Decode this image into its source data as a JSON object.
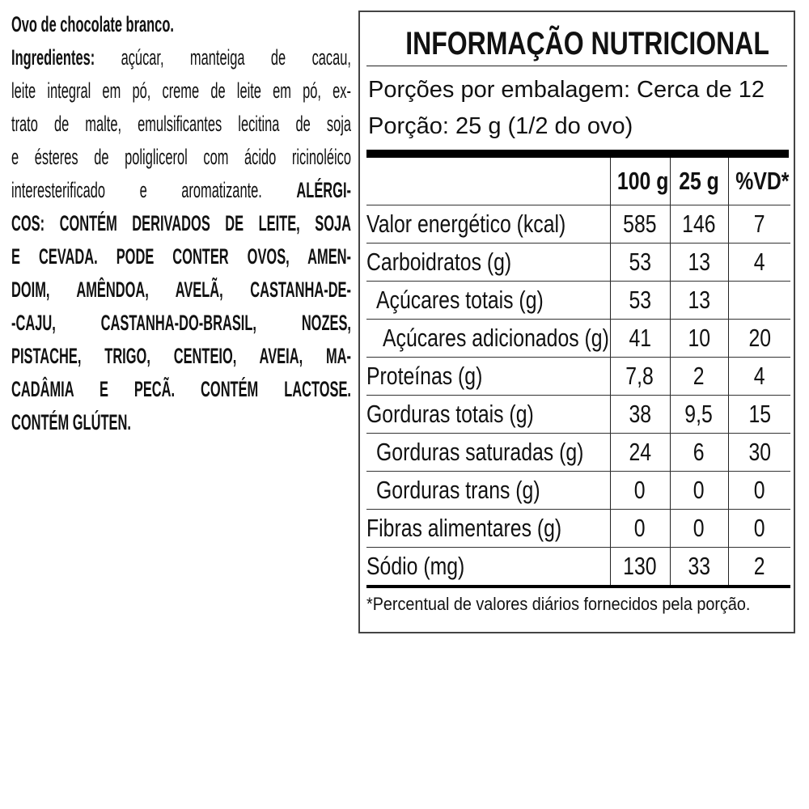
{
  "ingredients_block": {
    "product_name": "Ovo de chocolate branco.",
    "ingredients_label": "Ingredientes:",
    "lines": [
      " açúcar, manteiga de cacau,",
      "leite integral em pó, creme de leite em pó, ex-",
      "trato de malte, emulsificantes lecitina de soja",
      "e ésteres de poliglicerol com ácido ricinoléico",
      "interesterificado e aromatizante. ",
      "ALÉRGI-",
      "COS: CONTÉM DERIVADOS DE LEITE, SOJA",
      "E CEVADA. PODE CONTER OVOS, AMEN-",
      "DOIM, AMÊNDOA, AVELÃ, CASTANHA-DE-",
      "-CAJU, CASTANHA-DO-BRASIL, NOZES,",
      "PISTACHE, TRIGO, CENTEIO, AVEIA, MA-",
      "CADÂMIA E PECÃ. CONTÉM LACTOSE.",
      "CONTÉM GLÚTEN."
    ]
  },
  "nutrition": {
    "title": "INFORMAÇÃO NUTRICIONAL",
    "servings_per_package": "Porções por embalagem: Cerca de 12",
    "serving_size": "Porção: 25 g (1/2 do ovo)",
    "columns": [
      "100 g",
      "25 g",
      "%VD*"
    ],
    "rows": [
      {
        "label": "Valor energético (kcal)",
        "v100": "585",
        "v25": "146",
        "vd": "7"
      },
      {
        "label": "Carboidratos (g)",
        "v100": "53",
        "v25": "13",
        "vd": "4"
      },
      {
        "label": "Açúcares totais (g)",
        "v100": "53",
        "v25": "13",
        "vd": ""
      },
      {
        "label": "Açúcares adicionados (g)",
        "v100": "41",
        "v25": "10",
        "vd": "20"
      },
      {
        "label": "Proteínas (g)",
        "v100": "7,8",
        "v25": "2",
        "vd": "4"
      },
      {
        "label": "Gorduras totais (g)",
        "v100": "38",
        "v25": "9,5",
        "vd": "15"
      },
      {
        "label": "Gorduras saturadas (g)",
        "v100": "24",
        "v25": "6",
        "vd": "30"
      },
      {
        "label": "Gorduras trans (g)",
        "v100": "0",
        "v25": "0",
        "vd": "0"
      },
      {
        "label": "Fibras alimentares (g)",
        "v100": "0",
        "v25": "0",
        "vd": "0"
      },
      {
        "label": "Sódio (mg)",
        "v100": "130",
        "v25": "33",
        "vd": "2"
      }
    ],
    "footnote": "*Percentual de valores diários fornecidos pela porção."
  }
}
